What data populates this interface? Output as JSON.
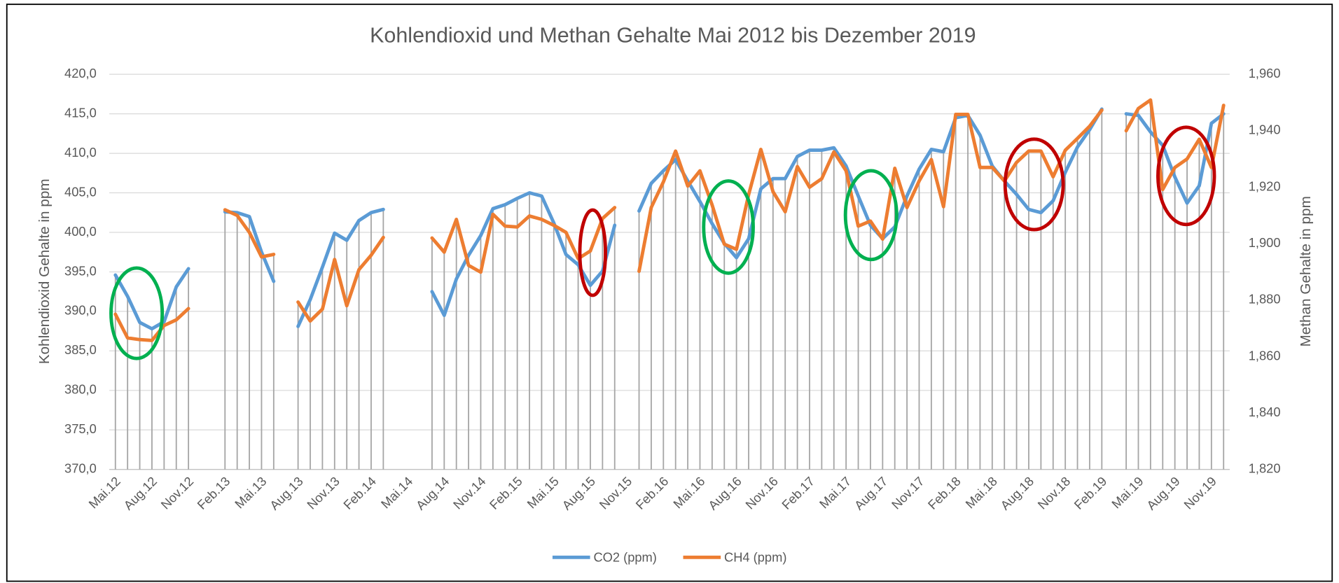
{
  "chart_data": {
    "type": "line",
    "title": "Kohlendioxid und Methan Gehalte Mai 2012 bis Dezember 2019",
    "y_label": "Kohlendioxid Gehalte in ppm",
    "y2_label": "Methan Gehalte in ppm",
    "categories": [
      "Mai.12",
      null,
      null,
      "Aug.12",
      null,
      null,
      "Nov.12",
      null,
      null,
      "Feb.13",
      null,
      null,
      "Mai.13",
      null,
      null,
      "Aug.13",
      null,
      null,
      "Nov.13",
      null,
      null,
      "Feb.14",
      null,
      null,
      "Mai.14",
      null,
      null,
      "Aug.14",
      null,
      null,
      "Nov.14",
      null,
      null,
      "Feb.15",
      null,
      null,
      "Mai.15",
      null,
      null,
      "Aug.15",
      null,
      null,
      "Nov.15",
      null,
      null,
      "Feb.16",
      null,
      null,
      "Mai.16",
      null,
      null,
      "Aug.16",
      null,
      null,
      "Nov.16",
      null,
      null,
      "Feb.17",
      null,
      null,
      "Mai.17",
      null,
      null,
      "Aug.17",
      null,
      null,
      "Nov.17",
      null,
      null,
      "Feb.18",
      null,
      null,
      "Mai.18",
      null,
      null,
      "Aug.18",
      null,
      null,
      "Nov.18",
      null,
      null,
      "Feb.19",
      null,
      null,
      "Mai.19",
      null,
      null,
      "Aug.19",
      null,
      null,
      "Nov.19",
      null
    ],
    "series": [
      {
        "name": "CO2 (ppm)",
        "color": "#5b9bd5",
        "values": [
          394.6,
          391.9,
          388.6,
          387.8,
          388.7,
          393.1,
          395.4,
          null,
          null,
          402.6,
          402.5,
          402.0,
          397.5,
          393.8,
          null,
          388.1,
          391.5,
          395.6,
          399.9,
          399.0,
          401.5,
          402.5,
          402.9,
          null,
          null,
          null,
          392.5,
          389.5,
          394.1,
          397.1,
          399.6,
          403.0,
          403.5,
          404.3,
          405.0,
          404.6,
          401.2,
          397.2,
          395.9,
          393.3,
          395.1,
          400.9,
          null,
          402.7,
          406.2,
          407.8,
          409.2,
          406.5,
          403.9,
          401.1,
          398.6,
          396.8,
          399.2,
          405.5,
          406.8,
          406.8,
          409.6,
          410.4,
          410.4,
          410.7,
          408.4,
          404.6,
          400.9,
          399.2,
          400.7,
          404.6,
          408.0,
          410.5,
          410.2,
          414.5,
          414.8,
          412.3,
          408.4,
          406.5,
          404.8,
          402.9,
          402.5,
          404.0,
          407.6,
          410.8,
          413.0,
          415.6,
          null,
          415.0,
          414.8,
          412.7,
          411.0,
          407.0,
          403.7,
          405.9,
          413.8,
          415.0
        ]
      },
      {
        "name": "CH4 (ppm)",
        "color": "#ed7d31",
        "axis": "y2",
        "values": [
          1875,
          1866.6,
          1866,
          1865.7,
          1871,
          1873,
          1877,
          null,
          null,
          1912,
          1910,
          1904,
          1895.3,
          1896.2,
          null,
          1879.3,
          1872.6,
          1876.8,
          1894.4,
          1878,
          1890.8,
          1895.9,
          1902.2,
          null,
          null,
          null,
          1902,
          1897,
          1908.6,
          1892.3,
          1889.9,
          1910.4,
          1906.2,
          1905.9,
          1909.8,
          1908.6,
          1906.5,
          1904,
          1894.7,
          1897.4,
          1908.9,
          1912.8,
          null,
          1890.2,
          1912.8,
          1921.9,
          1932.8,
          1920.4,
          1925.8,
          1913.7,
          1899.8,
          1898,
          1917.4,
          1933.4,
          1918.4,
          1911.3,
          1927.3,
          1920,
          1923,
          1932.5,
          1925.8,
          1906.2,
          1908,
          1901.6,
          1926.7,
          1912.8,
          1922.2,
          1929.8,
          1913.1,
          1945.8,
          1945.8,
          1927,
          1927,
          1922.2,
          1928.8,
          1932.8,
          1932.8,
          1923.7,
          1933.1,
          1937.3,
          1941.6,
          1947.3,
          null,
          1940,
          1947.9,
          1950.9,
          1919.2,
          1927,
          1930,
          1937,
          1927,
          1949
        ]
      }
    ],
    "ylim": [
      370,
      420
    ],
    "yticks": [
      {
        "value": 370,
        "label": "370,0"
      },
      {
        "value": 375,
        "label": "375,0"
      },
      {
        "value": 380,
        "label": "380,0"
      },
      {
        "value": 385,
        "label": "385,0"
      },
      {
        "value": 390,
        "label": "390,0"
      },
      {
        "value": 395,
        "label": "395,0"
      },
      {
        "value": 400,
        "label": "400,0"
      },
      {
        "value": 405,
        "label": "405,0"
      },
      {
        "value": 410,
        "label": "410,0"
      },
      {
        "value": 415,
        "label": "415,0"
      },
      {
        "value": 420,
        "label": "420,0"
      }
    ],
    "y2lim": [
      1820,
      1960
    ],
    "y2ticks": [
      {
        "value": 1820,
        "label": "1,820"
      },
      {
        "value": 1840,
        "label": "1,840"
      },
      {
        "value": 1860,
        "label": "1,860"
      },
      {
        "value": 1880,
        "label": "1,880"
      },
      {
        "value": 1900,
        "label": "1,900"
      },
      {
        "value": 1920,
        "label": "1,920"
      },
      {
        "value": 1940,
        "label": "1,940"
      },
      {
        "value": 1960,
        "label": "1,960"
      }
    ],
    "grid": true,
    "drop_lines": true,
    "legend": "bottom"
  }
}
